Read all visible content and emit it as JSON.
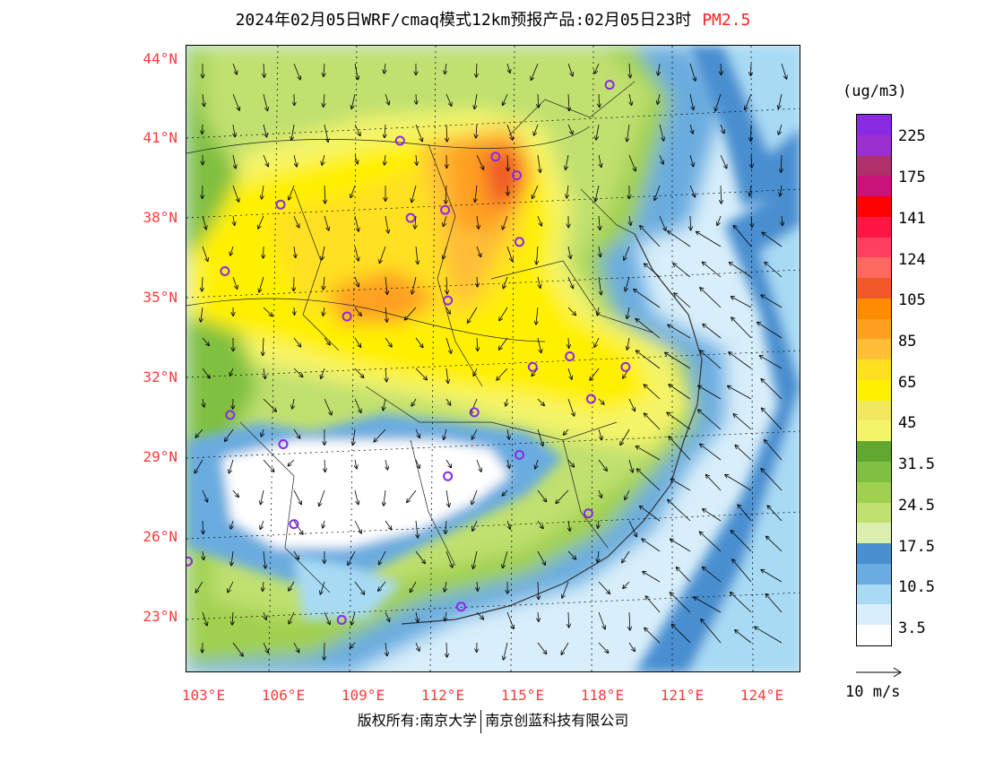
{
  "title": {
    "main": "2024年02月05日WRF/cmaq模式12km预报产品:02月05日23时",
    "pollutant": "PM2.5"
  },
  "axes": {
    "lat_labels": [
      "44°N",
      "41°N",
      "38°N",
      "35°N",
      "32°N",
      "29°N",
      "26°N",
      "23°N"
    ],
    "lon_labels": [
      "103°E",
      "106°E",
      "109°E",
      "112°E",
      "115°E",
      "118°E",
      "121°E",
      "124°E"
    ]
  },
  "legend": {
    "unit": "(ug/m3)",
    "labels": [
      "225",
      "175",
      "141",
      "124",
      "105",
      "85",
      "65",
      "45",
      "31.5",
      "24.5",
      "17.5",
      "10.5",
      "3.5"
    ],
    "colors": [
      "#8a2be2",
      "#9b30d0",
      "#b0306a",
      "#c8147a",
      "#ff0000",
      "#ff1744",
      "#ff4060",
      "#ff6a60",
      "#f05a28",
      "#ff8c00",
      "#ffa020",
      "#ffbe38",
      "#ffe020",
      "#fff000",
      "#f2e860",
      "#f4f46a",
      "#62a830",
      "#80c040",
      "#a0d050",
      "#c0e070",
      "#dcefb0",
      "#4a8fd0",
      "#6aacdf",
      "#a8daf4",
      "#d8eefa",
      "#ffffff"
    ]
  },
  "wind_reference": {
    "label": "10 m/s"
  },
  "cities": [
    {
      "lon": 118.8,
      "lat": 42.9
    },
    {
      "lon": 110.9,
      "lat": 40.8
    },
    {
      "lon": 114.5,
      "lat": 40.2
    },
    {
      "lon": 115.3,
      "lat": 39.5
    },
    {
      "lon": 106.4,
      "lat": 38.4
    },
    {
      "lon": 112.6,
      "lat": 38.2
    },
    {
      "lon": 111.3,
      "lat": 37.9
    },
    {
      "lon": 115.4,
      "lat": 37.0
    },
    {
      "lon": 104.3,
      "lat": 35.9
    },
    {
      "lon": 112.7,
      "lat": 34.8
    },
    {
      "lon": 108.9,
      "lat": 34.2
    },
    {
      "lon": 117.3,
      "lat": 32.7
    },
    {
      "lon": 115.9,
      "lat": 32.3
    },
    {
      "lon": 119.4,
      "lat": 32.3
    },
    {
      "lon": 118.1,
      "lat": 31.1
    },
    {
      "lon": 113.7,
      "lat": 30.6
    },
    {
      "lon": 104.5,
      "lat": 30.5
    },
    {
      "lon": 106.5,
      "lat": 29.4
    },
    {
      "lon": 115.4,
      "lat": 29.0
    },
    {
      "lon": 112.7,
      "lat": 28.2
    },
    {
      "lon": 118.0,
      "lat": 26.8
    },
    {
      "lon": 106.9,
      "lat": 26.4
    },
    {
      "lon": 102.9,
      "lat": 25.0
    },
    {
      "lon": 108.7,
      "lat": 22.8
    },
    {
      "lon": 113.2,
      "lat": 23.3
    }
  ],
  "footer": {
    "left": "版权所有:南京大学",
    "right": "南京创蓝科技有限公司"
  }
}
